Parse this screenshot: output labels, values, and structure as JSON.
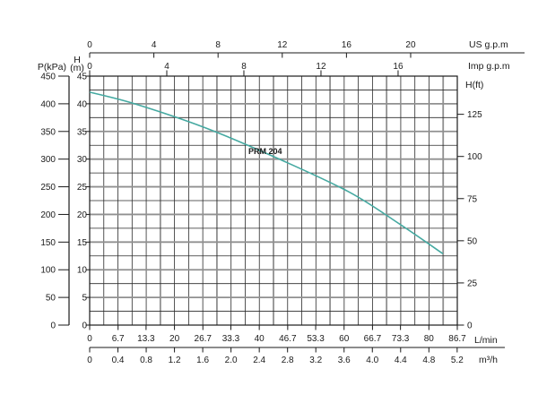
{
  "curve_label": "PRM 204",
  "axes": {
    "us_gpm": {
      "unit": "US g.p.m",
      "ticks": [
        "0",
        "4",
        "8",
        "12",
        "16",
        "20"
      ]
    },
    "imp_gpm": {
      "unit": "Imp g.p.m",
      "ticks": [
        "0",
        "4",
        "8",
        "12",
        "16"
      ]
    },
    "p_kpa": {
      "unit": "P(kPa)",
      "ticks": [
        "450",
        "400",
        "350",
        "300",
        "250",
        "200",
        "150",
        "100",
        "50",
        "0"
      ]
    },
    "h_m": {
      "unit_line1": "H",
      "unit_line2": "(m)",
      "ticks": [
        "45",
        "40",
        "35",
        "30",
        "25",
        "20",
        "15",
        "10",
        "5",
        "0"
      ]
    },
    "h_ft": {
      "unit": "H(ft)",
      "ticks": [
        "125",
        "100",
        "75",
        "50",
        "25",
        "0"
      ]
    },
    "l_min": {
      "unit": "L/min",
      "ticks": [
        "0",
        "6.7",
        "13.3",
        "20",
        "26.7",
        "33.3",
        "40",
        "46.7",
        "53.3",
        "60",
        "66.7",
        "73.3",
        "80",
        "86.7"
      ]
    },
    "m3_h": {
      "unit": "m³/h",
      "ticks": [
        "0",
        "0.4",
        "0.8",
        "1.2",
        "1.6",
        "2.0",
        "2.4",
        "2.8",
        "3.2",
        "3.6",
        "4.0",
        "4.4",
        "4.8",
        "5.2"
      ]
    }
  },
  "chart_data": {
    "type": "line",
    "title": "PRM 204 pump performance curve (head vs flow)",
    "series": [
      {
        "name": "PRM 204",
        "flow_l_min": [
          0,
          10.6,
          27.5,
          44.4,
          61.3,
          73.6,
          83.3
        ],
        "head_m": [
          42.1,
          40.0,
          35.6,
          30.1,
          24.0,
          18.0,
          12.9
        ]
      }
    ],
    "x_axis": {
      "primary_unit": "L/min",
      "range_l_min": [
        0,
        86.7
      ],
      "alt_scales": {
        "m3_h": [
          0,
          5.2
        ],
        "us_gpm": [
          0,
          22.9
        ],
        "imp_gpm": [
          0,
          19.1
        ]
      }
    },
    "y_axis": {
      "primary_unit": "H(m)",
      "range_m": [
        0,
        45
      ],
      "alt_scales": {
        "p_kpa": [
          0,
          450
        ],
        "h_ft": [
          0,
          147.6
        ]
      }
    },
    "grid": true,
    "legend_position": "label-on-curve"
  },
  "colors": {
    "curve": "#45a9a1",
    "grid_thin": "#2a2a2a",
    "grid_thick": "#909090",
    "axis": "#1a1a1a",
    "text": "#1a1a1a",
    "background": "#ffffff"
  }
}
